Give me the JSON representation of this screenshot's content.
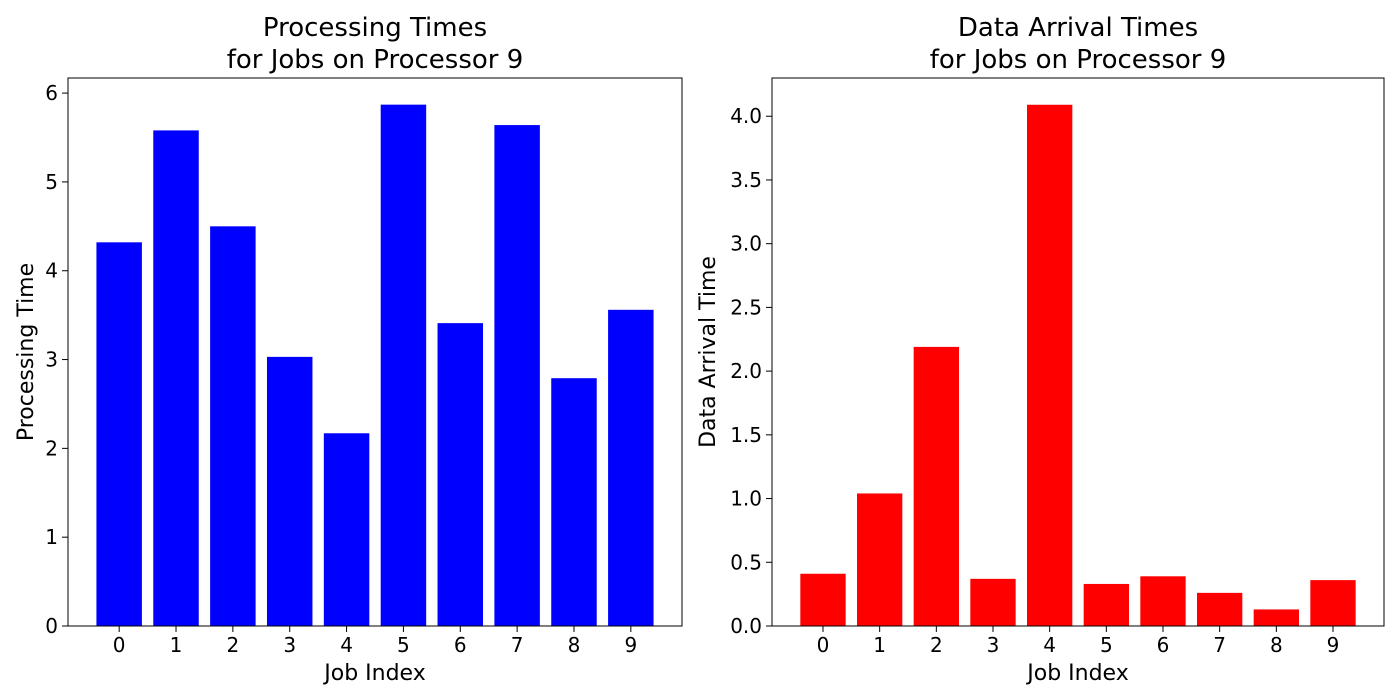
{
  "chart_data": [
    {
      "type": "bar",
      "title_lines": [
        "Processing Times",
        "for Jobs on Processor 9"
      ],
      "xlabel": "Job Index",
      "ylabel": "Processing Time",
      "categories": [
        "0",
        "1",
        "2",
        "3",
        "4",
        "5",
        "6",
        "7",
        "8",
        "9"
      ],
      "values": [
        4.32,
        5.58,
        4.5,
        3.03,
        2.17,
        5.87,
        3.41,
        5.64,
        2.79,
        3.56
      ],
      "color": "#0000ff",
      "ylim": [
        0,
        6.17
      ],
      "yticks": [
        0,
        1,
        2,
        3,
        4,
        5,
        6
      ],
      "ytick_labels": [
        "0",
        "1",
        "2",
        "3",
        "4",
        "5",
        "6"
      ],
      "grid": false
    },
    {
      "type": "bar",
      "title_lines": [
        "Data Arrival Times",
        "for Jobs on Processor 9"
      ],
      "xlabel": "Job Index",
      "ylabel": "Data Arrival Time",
      "categories": [
        "0",
        "1",
        "2",
        "3",
        "4",
        "5",
        "6",
        "7",
        "8",
        "9"
      ],
      "values": [
        0.41,
        1.04,
        2.19,
        0.37,
        4.09,
        0.33,
        0.39,
        0.26,
        0.13,
        0.36
      ],
      "color": "#ff0000",
      "ylim": [
        0,
        4.3
      ],
      "yticks": [
        0,
        0.5,
        1.0,
        1.5,
        2.0,
        2.5,
        3.0,
        3.5,
        4.0
      ],
      "ytick_labels": [
        "0.0",
        "0.5",
        "1.0",
        "1.5",
        "2.0",
        "2.5",
        "3.0",
        "3.5",
        "4.0"
      ],
      "grid": false
    }
  ]
}
